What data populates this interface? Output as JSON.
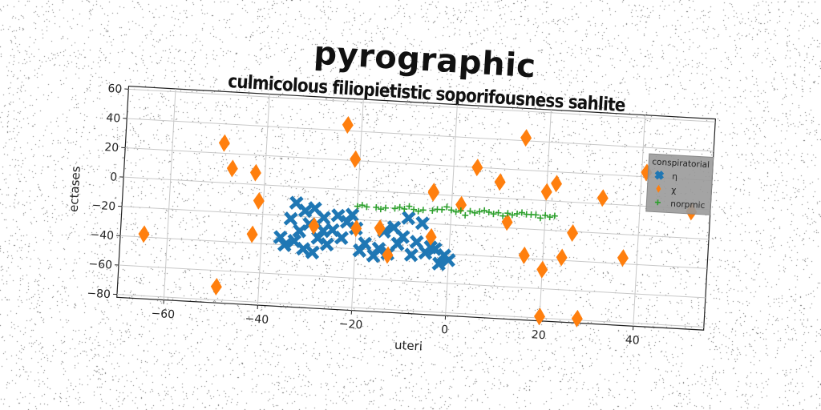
{
  "title": "pyrographic",
  "subtitle": "culmicolous filiopietistic soporifousness sahlite",
  "chart_data": {
    "type": "scatter",
    "xlabel": "uteri",
    "ylabel": "ectases",
    "xlim": [
      -70,
      55
    ],
    "ylim": [
      -82,
      62
    ],
    "xticks": [
      -60,
      -40,
      -20,
      0,
      20,
      40
    ],
    "yticks": [
      -80,
      -60,
      -40,
      -20,
      0,
      20,
      40,
      60
    ],
    "grid": true,
    "legend": {
      "title": "conspiratorial",
      "position": "top-right"
    },
    "series": [
      {
        "name": "η",
        "marker": "x",
        "color": "#1f77b4",
        "points": [
          [
            -33,
            -11
          ],
          [
            -31,
            -16
          ],
          [
            -29,
            -14
          ],
          [
            -34,
            -22
          ],
          [
            -27,
            -20
          ],
          [
            -30,
            -25
          ],
          [
            -32,
            -30
          ],
          [
            -28,
            -34
          ],
          [
            -35,
            -40
          ],
          [
            -26,
            -38
          ],
          [
            -31,
            -42
          ],
          [
            -24,
            -18
          ],
          [
            -22,
            -22
          ],
          [
            -25,
            -28
          ],
          [
            -23,
            -33
          ],
          [
            -20,
            -26
          ],
          [
            -29,
            -44
          ],
          [
            -36,
            -35
          ],
          [
            -21,
            -17
          ],
          [
            -33,
            -37
          ],
          [
            -27,
            -29
          ],
          [
            -18,
            -36
          ],
          [
            -15,
            -39
          ],
          [
            -13,
            -42
          ],
          [
            -16,
            -44
          ],
          [
            -10,
            -30
          ],
          [
            -7,
            -33
          ],
          [
            -8,
            -42
          ],
          [
            -5,
            -40
          ],
          [
            -3,
            -37
          ],
          [
            -1,
            -41
          ],
          [
            -9,
            -17
          ],
          [
            -6,
            -20
          ],
          [
            -4,
            -36
          ],
          [
            0,
            -44
          ],
          [
            -2,
            -47
          ],
          [
            -14,
            -27
          ],
          [
            -12,
            -24
          ],
          [
            -11,
            -35
          ],
          [
            -19,
            -41
          ]
        ]
      },
      {
        "name": "χ",
        "marker": "diamond",
        "color": "#ff7f0e",
        "points": [
          [
            -65,
            -38
          ],
          [
            -49,
            27
          ],
          [
            -47,
            10
          ],
          [
            -49,
            -71
          ],
          [
            -42,
            8
          ],
          [
            -41,
            -11
          ],
          [
            -42,
            -34
          ],
          [
            -23,
            44
          ],
          [
            -21,
            21
          ],
          [
            -29,
            -26
          ],
          [
            -20,
            -26
          ],
          [
            -15,
            -25
          ],
          [
            -13,
            -43
          ],
          [
            -4,
            2
          ],
          [
            -4,
            -29
          ],
          [
            -4,
            1
          ],
          [
            2,
            -6
          ],
          [
            5,
            20
          ],
          [
            10,
            11
          ],
          [
            12,
            -16
          ],
          [
            15,
            42
          ],
          [
            16,
            -38
          ],
          [
            20,
            -47
          ],
          [
            20,
            6
          ],
          [
            22,
            12
          ],
          [
            24,
            -38
          ],
          [
            26,
            -21
          ],
          [
            20,
            -79
          ],
          [
            28,
            -79
          ],
          [
            32,
            4
          ],
          [
            37,
            -36
          ],
          [
            41,
            23
          ],
          [
            51,
            -2
          ]
        ]
      },
      {
        "name": "norpmic",
        "marker": "plus",
        "color": "#2ca02c",
        "points": [
          [
            -20,
            -11
          ],
          [
            -18,
            -11
          ],
          [
            -16,
            -11
          ],
          [
            -14,
            -11
          ],
          [
            -12,
            -11
          ],
          [
            -10,
            -11
          ],
          [
            -8,
            -11
          ],
          [
            -6,
            -11
          ],
          [
            -4,
            -11
          ],
          [
            -2,
            -10
          ],
          [
            0,
            -10
          ],
          [
            2,
            -10
          ],
          [
            4,
            -10
          ],
          [
            6,
            -10
          ],
          [
            8,
            -10
          ],
          [
            10,
            -10
          ],
          [
            12,
            -10
          ],
          [
            14,
            -10
          ],
          [
            16,
            -10
          ],
          [
            18,
            -10
          ],
          [
            20,
            -10
          ],
          [
            22,
            -10
          ],
          [
            -19,
            -10
          ],
          [
            -15,
            -12
          ],
          [
            -11,
            -10
          ],
          [
            -7,
            -12
          ],
          [
            -3,
            -10
          ],
          [
            1,
            -11
          ],
          [
            5,
            -11
          ],
          [
            9,
            -11
          ],
          [
            13,
            -11
          ],
          [
            17,
            -10
          ],
          [
            21,
            -11
          ],
          [
            3,
            -13
          ],
          [
            -1,
            -8
          ],
          [
            7,
            -9
          ],
          [
            -9,
            -9
          ],
          [
            11,
            -12
          ],
          [
            15,
            -9
          ],
          [
            19,
            -12
          ]
        ]
      }
    ]
  }
}
